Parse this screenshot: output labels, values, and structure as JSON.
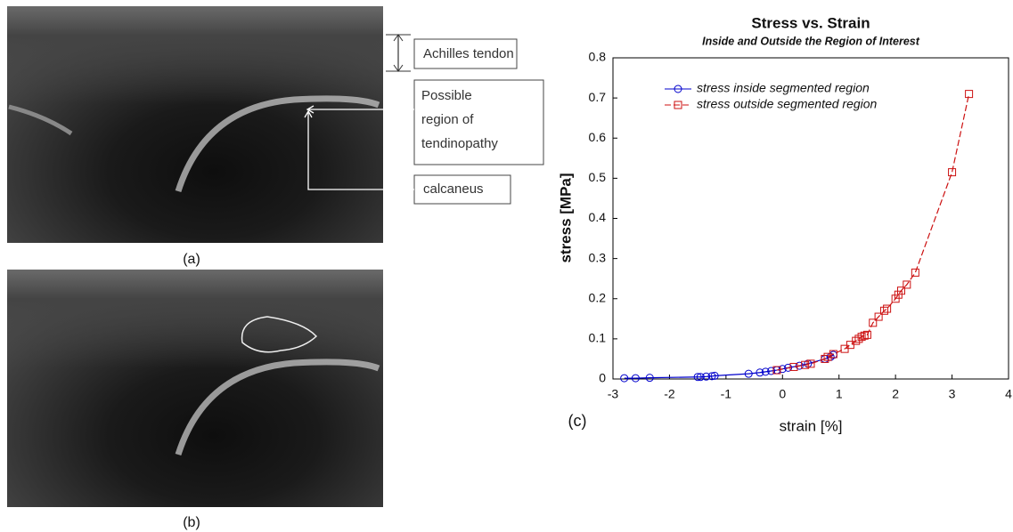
{
  "figure": {
    "panel_labels": [
      "(a)",
      "(b)",
      "(c)"
    ],
    "annotations": {
      "tendon": "Achilles tendon",
      "region": [
        "Possible",
        "region of",
        "tendinopathy"
      ],
      "bone": "calcaneus"
    }
  },
  "chart_data": {
    "type": "line",
    "title": "Stress vs. Strain",
    "subtitle": "Inside and Outside the Region of Interest",
    "x_label": "strain [%]",
    "y_label": "stress [MPa]",
    "xlim": [
      -3,
      4
    ],
    "xticks": [
      -3,
      -2,
      -1,
      0,
      1,
      2,
      3,
      4
    ],
    "ylim": [
      0,
      0.8
    ],
    "yticks": [
      0,
      0.1,
      0.2,
      0.3,
      0.4,
      0.5,
      0.6,
      0.7,
      0.8
    ],
    "legend": "upper left",
    "series": [
      {
        "name": "stress inside segmented region",
        "color": "#0000cc",
        "marker": "circle",
        "dash": false,
        "x": [
          -2.8,
          -2.6,
          -2.35,
          -1.5,
          -1.45,
          -1.35,
          -1.25,
          -1.2,
          -0.6,
          -0.4,
          -0.3,
          -0.2,
          -0.1,
          0.0,
          0.1,
          0.3,
          0.45,
          0.75,
          0.85,
          0.9
        ],
        "values": [
          0.002,
          0.002,
          0.003,
          0.005,
          0.005,
          0.006,
          0.007,
          0.008,
          0.013,
          0.016,
          0.018,
          0.02,
          0.022,
          0.025,
          0.028,
          0.033,
          0.038,
          0.05,
          0.055,
          0.06
        ]
      },
      {
        "name": "stress outside segmented region",
        "color": "#cc1111",
        "marker": "square",
        "dash": true,
        "x": [
          -0.1,
          0.2,
          0.4,
          0.5,
          0.75,
          0.8,
          0.9,
          1.1,
          1.2,
          1.3,
          1.35,
          1.4,
          1.45,
          1.5,
          1.6,
          1.7,
          1.8,
          1.85,
          2.0,
          2.05,
          2.1,
          2.2,
          2.35,
          3.0,
          3.3
        ],
        "values": [
          0.022,
          0.03,
          0.035,
          0.038,
          0.05,
          0.055,
          0.062,
          0.075,
          0.085,
          0.095,
          0.1,
          0.105,
          0.108,
          0.11,
          0.14,
          0.155,
          0.17,
          0.175,
          0.2,
          0.21,
          0.22,
          0.235,
          0.265,
          0.515,
          0.71
        ]
      }
    ]
  }
}
